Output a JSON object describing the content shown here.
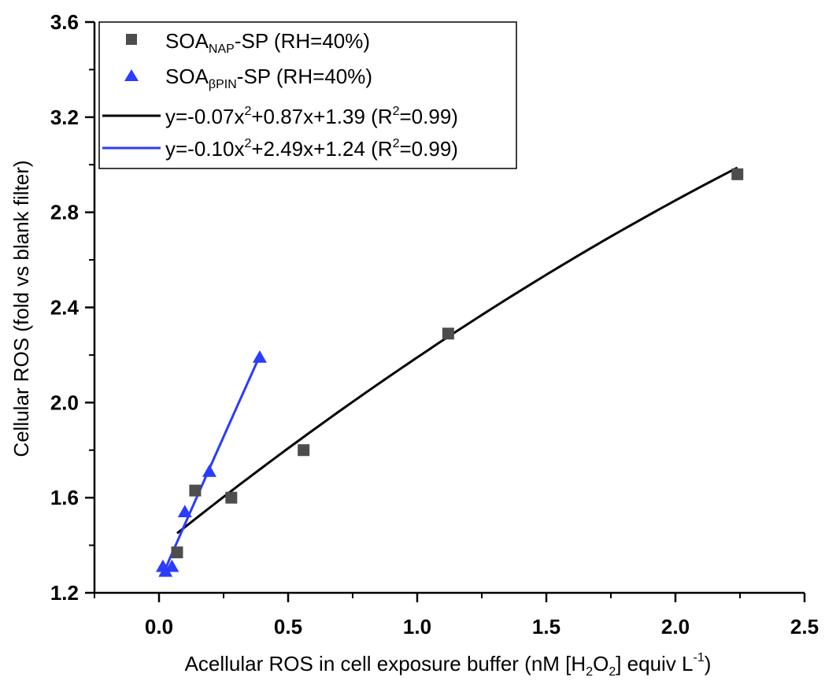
{
  "chart_data": {
    "type": "scatter",
    "xlabel": {
      "before": "Acellular ROS in cell exposure buffer (nM [H",
      "sub1": "2",
      "mid1": "O",
      "sub2": "2",
      "mid2": "] equiv L",
      "sup": "-1",
      "after": ")"
    },
    "ylabel": "Cellular ROS (fold vs blank filter)",
    "xlim": [
      -0.25,
      2.5
    ],
    "ylim": [
      1.2,
      3.6
    ],
    "xticks": [
      "0.0",
      "0.5",
      "1.0",
      "1.5",
      "2.0",
      "2.5"
    ],
    "xtick_values": [
      0.0,
      0.5,
      1.0,
      1.5,
      2.0,
      2.5
    ],
    "yticks": [
      "1.2",
      "1.6",
      "2.0",
      "2.4",
      "2.8",
      "3.2",
      "3.6"
    ],
    "ytick_values": [
      1.2,
      1.6,
      2.0,
      2.4,
      2.8,
      3.2,
      3.6
    ],
    "legend_position": "top-left",
    "series": [
      {
        "key": "nap",
        "legend": {
          "base": "SOA",
          "sub": "NAP",
          "rest": "-SP (RH=40%)"
        },
        "marker": "square",
        "color": "#4d4d4d",
        "x": [
          0.07,
          0.14,
          0.28,
          0.56,
          1.12,
          2.24
        ],
        "y": [
          1.37,
          1.63,
          1.6,
          1.8,
          2.29,
          2.96
        ]
      },
      {
        "key": "bpin",
        "legend": {
          "base": "SOA",
          "sub": "βPIN",
          "rest": "-SP (RH=40%)"
        },
        "marker": "triangle",
        "color": "#2a3cff",
        "x": [
          0.015,
          0.025,
          0.05,
          0.1,
          0.195,
          0.39
        ],
        "y": [
          1.31,
          1.29,
          1.31,
          1.54,
          1.71,
          2.19
        ]
      }
    ],
    "fits": [
      {
        "key": "nap_fit",
        "legend": {
          "p1": "y=-0.07x",
          "sup1": "2",
          "p2": "+0.87x+1.39 (R",
          "sup2": "2",
          "p3": "=0.99)"
        },
        "color": "#000000",
        "coef": [
          -0.07,
          0.87,
          1.39
        ],
        "x_range": [
          0.07,
          2.24
        ]
      },
      {
        "key": "bpin_fit",
        "legend": {
          "p1": "y=-0.10x",
          "sup1": "2",
          "p2": "+2.49x+1.24 (R",
          "sup2": "2",
          "p3": "=0.99)"
        },
        "color": "#2a3cff",
        "coef": [
          -0.1,
          2.49,
          1.24
        ],
        "x_range": [
          0.015,
          0.39
        ]
      }
    ]
  }
}
